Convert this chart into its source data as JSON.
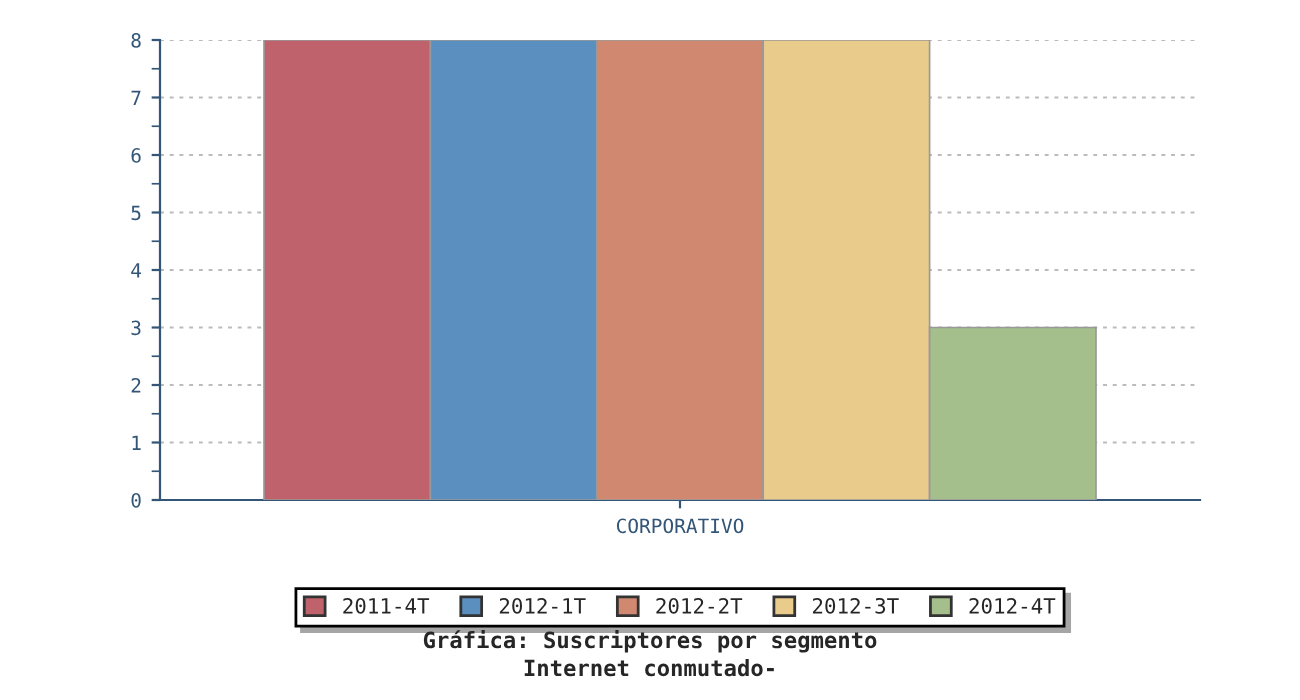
{
  "chart_data": {
    "type": "bar",
    "title": "Gráfica: Suscriptores por segmento",
    "subtitle": "Internet conmutado-",
    "categories": [
      "CORPORATIVO"
    ],
    "series": [
      {
        "name": "2011-4T",
        "color": "#c0626b",
        "values": [
          8
        ]
      },
      {
        "name": "2012-1T",
        "color": "#5b8fc0",
        "values": [
          8
        ]
      },
      {
        "name": "2012-2T",
        "color": "#d08870",
        "values": [
          8
        ]
      },
      {
        "name": "2012-3T",
        "color": "#e9cb8c",
        "values": [
          8
        ]
      },
      {
        "name": "2012-4T",
        "color": "#a4bf8b",
        "values": [
          3
        ]
      }
    ],
    "ylim": [
      0,
      8
    ],
    "yticks": [
      0,
      1,
      2,
      3,
      4,
      5,
      6,
      7,
      8
    ],
    "grid": "y",
    "legend": "bottom"
  }
}
